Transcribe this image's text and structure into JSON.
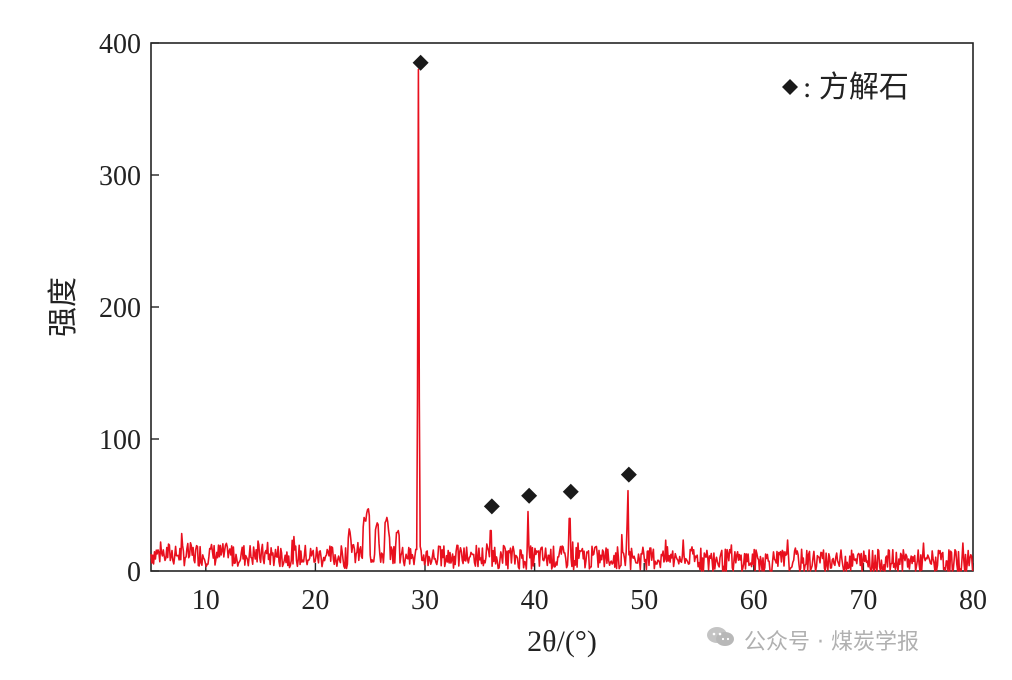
{
  "chart_data": {
    "type": "line",
    "xlabel": "2θ/(°)",
    "ylabel": "强度",
    "xlim": [
      5,
      80
    ],
    "ylim": [
      0,
      400
    ],
    "xticks": [
      10,
      20,
      30,
      40,
      50,
      60,
      70,
      80
    ],
    "yticks": [
      0,
      100,
      200,
      300,
      400
    ],
    "grid": false,
    "legend": {
      "label": ": 方解石",
      "marker": "diamond",
      "position": "top-right"
    },
    "colors": {
      "series": "#e8101e",
      "marker": "#1a1a1a",
      "axis": "#222222"
    },
    "series": [
      {
        "peaks": [
          {
            "x": 29.4,
            "y": 380
          },
          {
            "x": 36.0,
            "y": 40
          },
          {
            "x": 39.4,
            "y": 45
          },
          {
            "x": 43.2,
            "y": 52
          },
          {
            "x": 48.5,
            "y": 65
          }
        ],
        "baseline_hump": [
          {
            "x": 23.1,
            "y": 32
          },
          {
            "x": 24.5,
            "y": 40
          },
          {
            "x": 24.8,
            "y": 47
          },
          {
            "x": 25.6,
            "y": 38
          },
          {
            "x": 26.5,
            "y": 40
          },
          {
            "x": 27.5,
            "y": 32
          }
        ]
      }
    ],
    "markers": [
      {
        "x": 29.6,
        "y": 385
      },
      {
        "x": 36.1,
        "y": 49
      },
      {
        "x": 39.5,
        "y": 57
      },
      {
        "x": 43.3,
        "y": 60
      },
      {
        "x": 48.6,
        "y": 73
      }
    ]
  },
  "watermark": {
    "text": "公众号 · 煤炭学报",
    "icon": "wechat-icon"
  }
}
